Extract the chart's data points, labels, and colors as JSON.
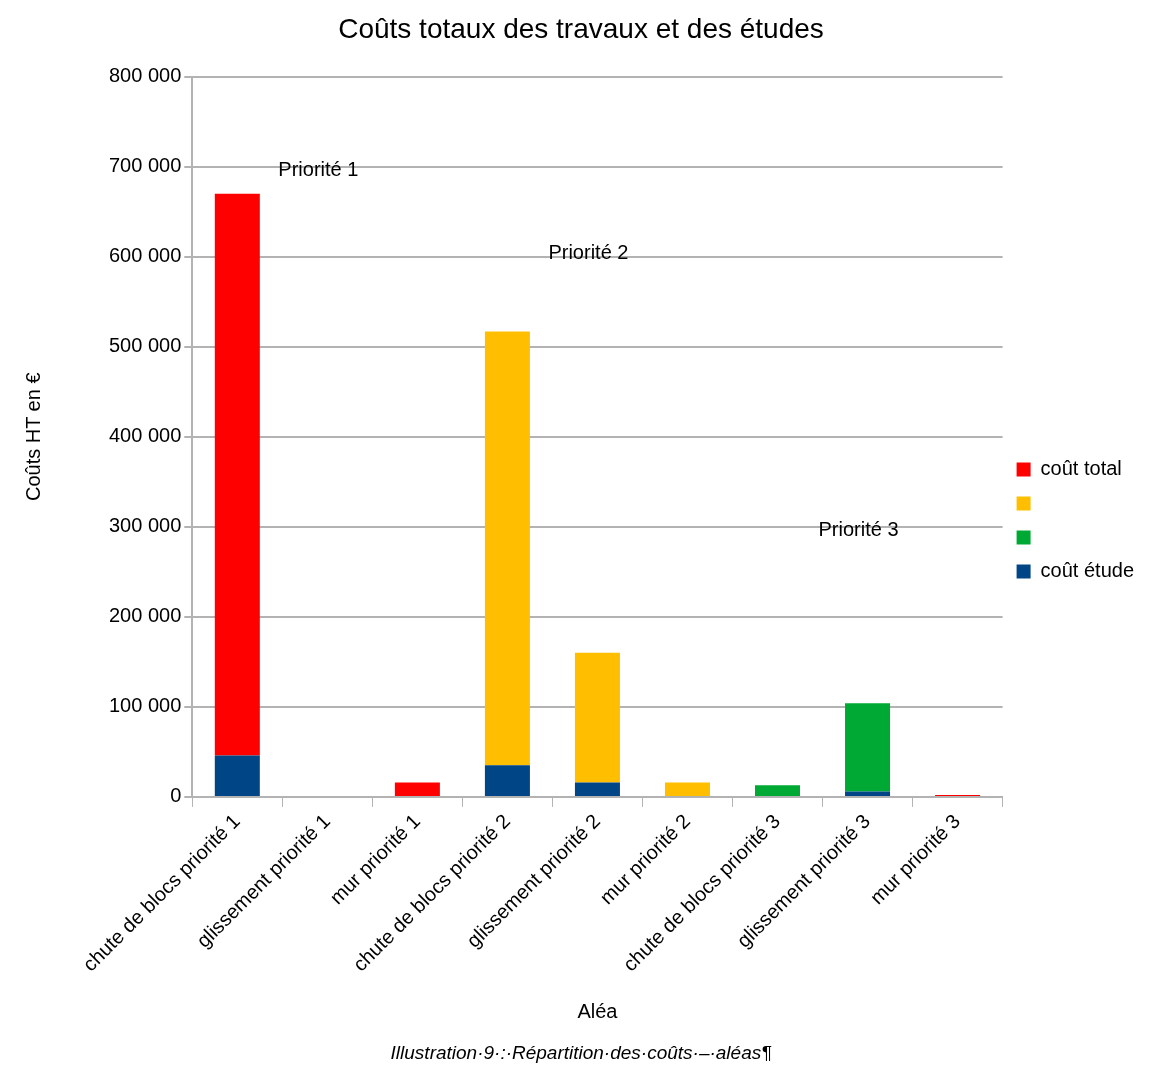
{
  "chart_data": {
    "type": "bar",
    "title": "Coûts totaux des travaux et des études",
    "xlabel": "Aléa",
    "ylabel": "Coûts HT en €",
    "categories": [
      "chute de blocs priorité 1",
      "glissement priorité 1",
      "mur priorité 1",
      "chute de blocs priorité 2",
      "glissement priorité 2",
      "mur priorité 2",
      "chute de blocs priorité 3",
      "glissement priorité 3",
      "mur priorité 3"
    ],
    "stacked": true,
    "series": [
      {
        "name": "coût étude",
        "color": "#004586",
        "values": [
          46000,
          null,
          null,
          35000,
          16000,
          null,
          1000,
          6000,
          null
        ]
      },
      {
        "name": "coût total",
        "color": "#ff0000",
        "values": [
          624000,
          null,
          16000,
          null,
          null,
          null,
          null,
          null,
          2000
        ]
      },
      {
        "color": "#ffbf00",
        "values": [
          null,
          null,
          null,
          482000,
          144000,
          16000,
          null,
          null,
          null
        ]
      },
      {
        "color": "#00a933",
        "values": [
          null,
          null,
          null,
          null,
          null,
          null,
          12000,
          98000,
          null
        ]
      }
    ],
    "ylim": [
      0,
      800000
    ],
    "yticks": [
      0,
      100000,
      200000,
      300000,
      400000,
      500000,
      600000,
      700000,
      800000
    ],
    "grid": "y",
    "legend": "right",
    "annotations": [
      "Priorité 1",
      "Priorité 2",
      "Priorité 3",
      "Illustration·9·:·Répartition·des·coûts·–·aléas¶"
    ]
  }
}
